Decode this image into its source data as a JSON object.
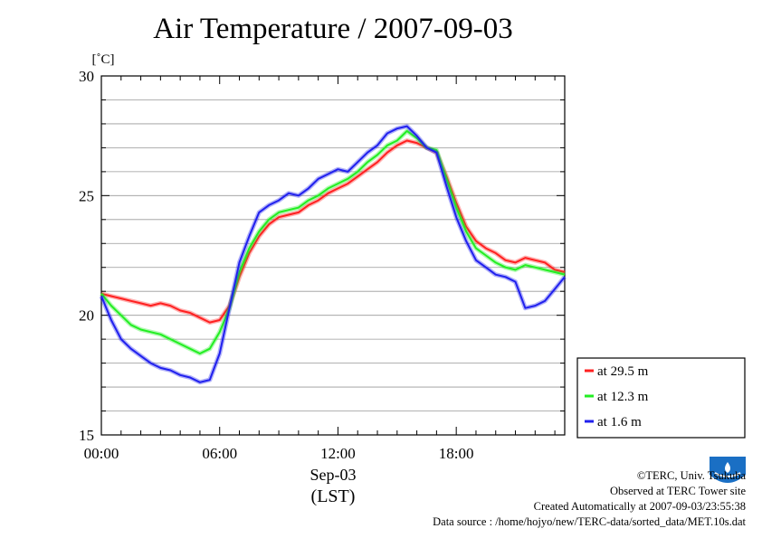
{
  "title": "Air Temperature / 2007-09-03",
  "colors": {
    "red": "#ff2020",
    "green": "#22ee22",
    "blue": "#2020ee",
    "grid": "#999999"
  },
  "credits": [
    "©TERC, Univ. Tsukuba",
    "Observed at TERC Tower site",
    "Created Automatically at 2007-09-03/23:55:38",
    "Data source : /home/hojyo/new/TERC-data/sorted_data/MET.10s.dat"
  ],
  "chart_data": {
    "type": "line",
    "title": "Air Temperature / 2007-09-03",
    "ylabel": "[˚C]",
    "xlabel": "Sep-03",
    "xlabel2": "(LST)",
    "ylim": [
      15,
      30
    ],
    "yticks": [
      15,
      20,
      25,
      30
    ],
    "xlim": [
      0,
      23.5
    ],
    "xticks": [
      {
        "v": 0,
        "label": "00:00"
      },
      {
        "v": 6,
        "label": "06:00"
      },
      {
        "v": 12,
        "label": "12:00"
      },
      {
        "v": 18,
        "label": "18:00"
      }
    ],
    "grid": true,
    "legend_position": "right-bottom",
    "x": [
      0,
      0.5,
      1,
      1.5,
      2,
      2.5,
      3,
      3.5,
      4,
      4.5,
      5,
      5.5,
      6,
      6.5,
      7,
      7.5,
      8,
      8.5,
      9,
      9.5,
      10,
      10.5,
      11,
      11.5,
      12,
      12.5,
      13,
      13.5,
      14,
      14.5,
      15,
      15.5,
      16,
      16.5,
      17,
      17.5,
      18,
      18.5,
      19,
      19.5,
      20,
      20.5,
      21,
      21.5,
      22,
      22.5,
      23,
      23.5
    ],
    "series": [
      {
        "name": "at 29.5 m",
        "color": "#ff2020",
        "values": [
          20.9,
          20.8,
          20.7,
          20.6,
          20.5,
          20.4,
          20.5,
          20.4,
          20.2,
          20.1,
          19.9,
          19.7,
          19.8,
          20.4,
          21.6,
          22.6,
          23.3,
          23.8,
          24.1,
          24.2,
          24.3,
          24.6,
          24.8,
          25.1,
          25.3,
          25.5,
          25.8,
          26.1,
          26.4,
          26.8,
          27.1,
          27.3,
          27.2,
          27.0,
          26.8,
          25.8,
          24.7,
          23.7,
          23.1,
          22.8,
          22.6,
          22.3,
          22.2,
          22.4,
          22.3,
          22.2,
          21.9,
          21.8
        ]
      },
      {
        "name": "at 12.3 m",
        "color": "#22ee22",
        "values": [
          20.9,
          20.4,
          20.0,
          19.6,
          19.4,
          19.3,
          19.2,
          19.0,
          18.8,
          18.6,
          18.4,
          18.6,
          19.3,
          20.3,
          21.8,
          22.8,
          23.5,
          24.0,
          24.3,
          24.4,
          24.5,
          24.8,
          25.0,
          25.3,
          25.5,
          25.7,
          26.0,
          26.4,
          26.7,
          27.1,
          27.3,
          27.7,
          27.4,
          27.0,
          26.9,
          25.7,
          24.5,
          23.5,
          22.8,
          22.5,
          22.2,
          22.0,
          21.9,
          22.1,
          22.0,
          21.9,
          21.8,
          21.7
        ]
      },
      {
        "name": "at 1.6 m",
        "color": "#2020ee",
        "values": [
          20.8,
          19.8,
          19.0,
          18.6,
          18.3,
          18.0,
          17.8,
          17.7,
          17.5,
          17.4,
          17.2,
          17.3,
          18.4,
          20.3,
          22.2,
          23.3,
          24.3,
          24.6,
          24.8,
          25.1,
          25.0,
          25.3,
          25.7,
          25.9,
          26.1,
          26.0,
          26.4,
          26.8,
          27.1,
          27.6,
          27.8,
          27.9,
          27.5,
          27.0,
          26.8,
          25.4,
          24.1,
          23.1,
          22.3,
          22.0,
          21.7,
          21.6,
          21.4,
          20.3,
          20.4,
          20.6,
          21.1,
          21.6
        ]
      }
    ]
  }
}
